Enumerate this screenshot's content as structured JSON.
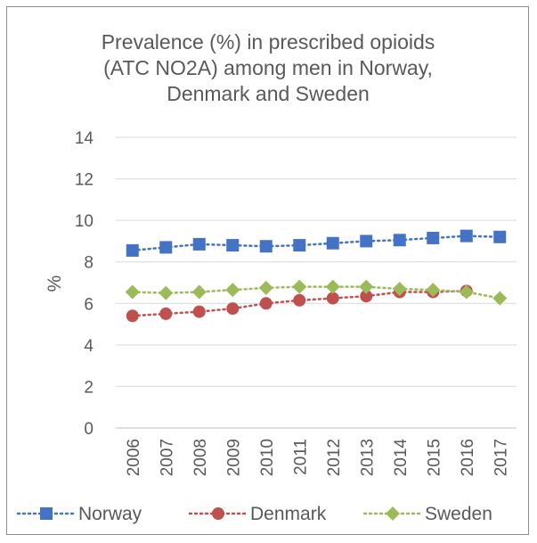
{
  "chart_data": {
    "type": "line",
    "title_lines": [
      "Prevalence (%) in prescribed opioids",
      "(ATC NO2A) among men in Norway,",
      "Denmark and Sweden"
    ],
    "ylabel": "%",
    "xlabel": "",
    "ylim": [
      0,
      14
    ],
    "yticks": [
      0,
      2,
      4,
      6,
      8,
      10,
      12,
      14
    ],
    "grid": true,
    "legend_position": "bottom",
    "categories": [
      "2006",
      "2007",
      "2008",
      "2009",
      "2010",
      "2011",
      "2012",
      "2013",
      "2014",
      "2015",
      "2016",
      "2017"
    ],
    "series": [
      {
        "name": "Norway",
        "color": "#4472c4",
        "marker": "square",
        "values": [
          8.55,
          8.7,
          8.85,
          8.8,
          8.75,
          8.8,
          8.9,
          9.0,
          9.05,
          9.15,
          9.25,
          9.2
        ]
      },
      {
        "name": "Denmark",
        "color": "#c0504d",
        "marker": "circle",
        "values": [
          5.4,
          5.5,
          5.6,
          5.75,
          6.0,
          6.15,
          6.25,
          6.35,
          6.55,
          6.55,
          6.6,
          null
        ]
      },
      {
        "name": "Sweden",
        "color": "#9bbb59",
        "marker": "diamond",
        "values": [
          6.55,
          6.5,
          6.55,
          6.65,
          6.75,
          6.8,
          6.8,
          6.8,
          6.7,
          6.65,
          6.55,
          6.25
        ]
      }
    ]
  }
}
